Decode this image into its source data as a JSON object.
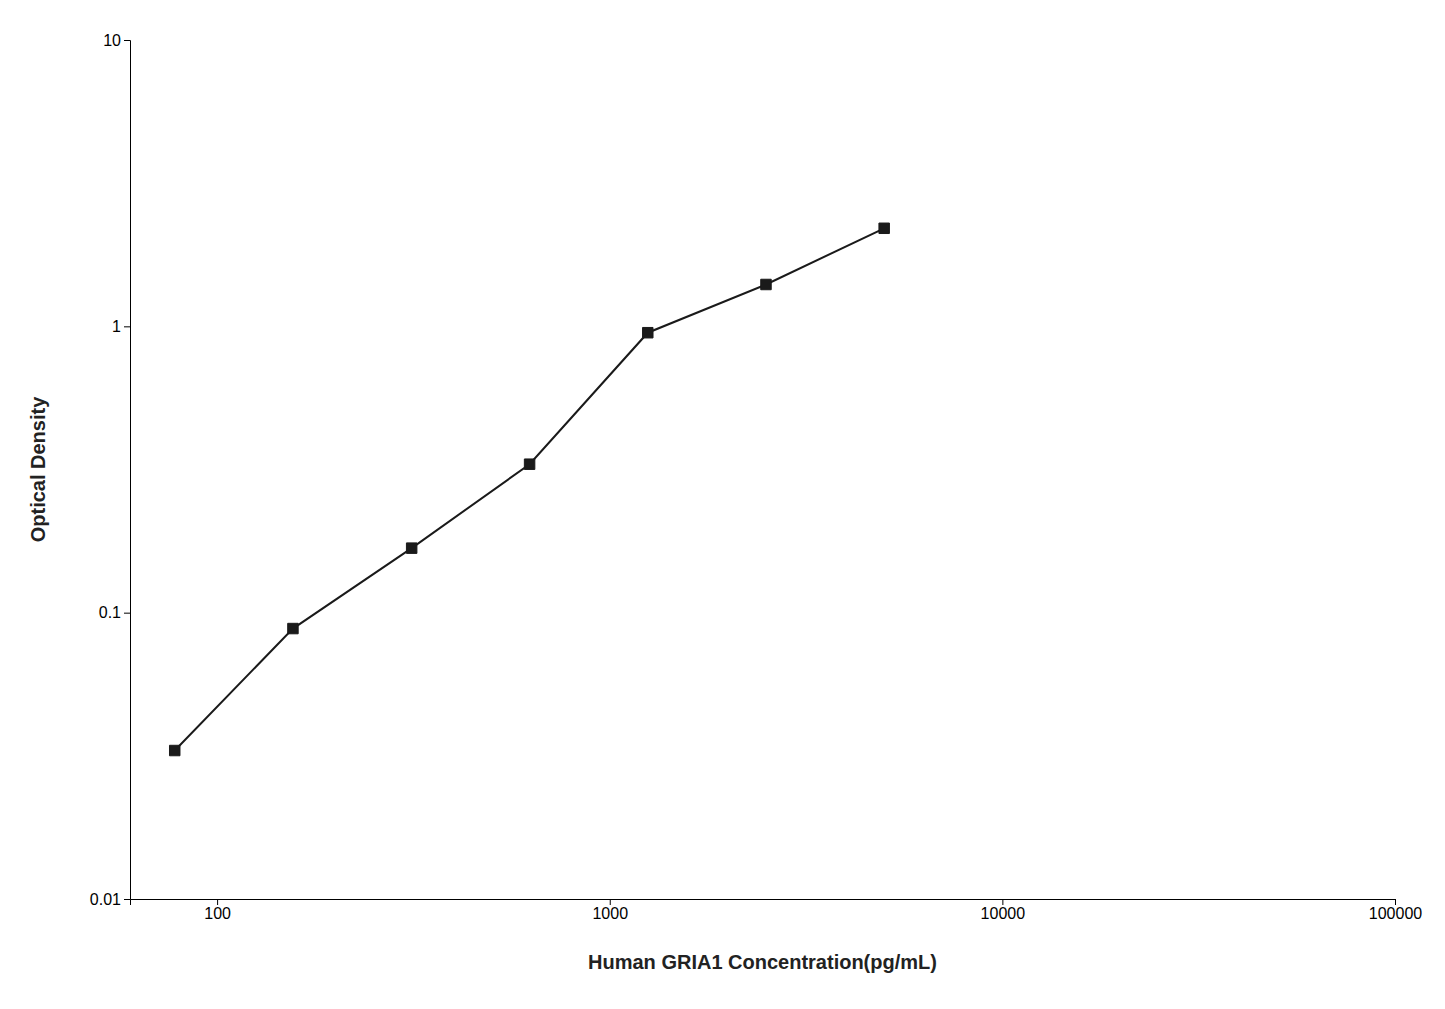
{
  "chart_data": {
    "type": "line",
    "xlabel": "Human GRIA1 Concentration(pg/mL)",
    "ylabel": "Optical Density",
    "x": [
      78,
      156,
      313,
      625,
      1250,
      2500,
      5000
    ],
    "values": [
      0.033,
      0.088,
      0.168,
      0.33,
      0.95,
      1.4,
      2.2
    ],
    "color": "#1a1a1a",
    "marker": "square",
    "log": true,
    "grid": false,
    "xlim": [
      60,
      100000
    ],
    "ylim": [
      0.01,
      10
    ],
    "xticks": [
      100,
      1000,
      10000,
      100000
    ],
    "yticks": [
      0.01,
      0.1,
      1,
      10
    ]
  }
}
